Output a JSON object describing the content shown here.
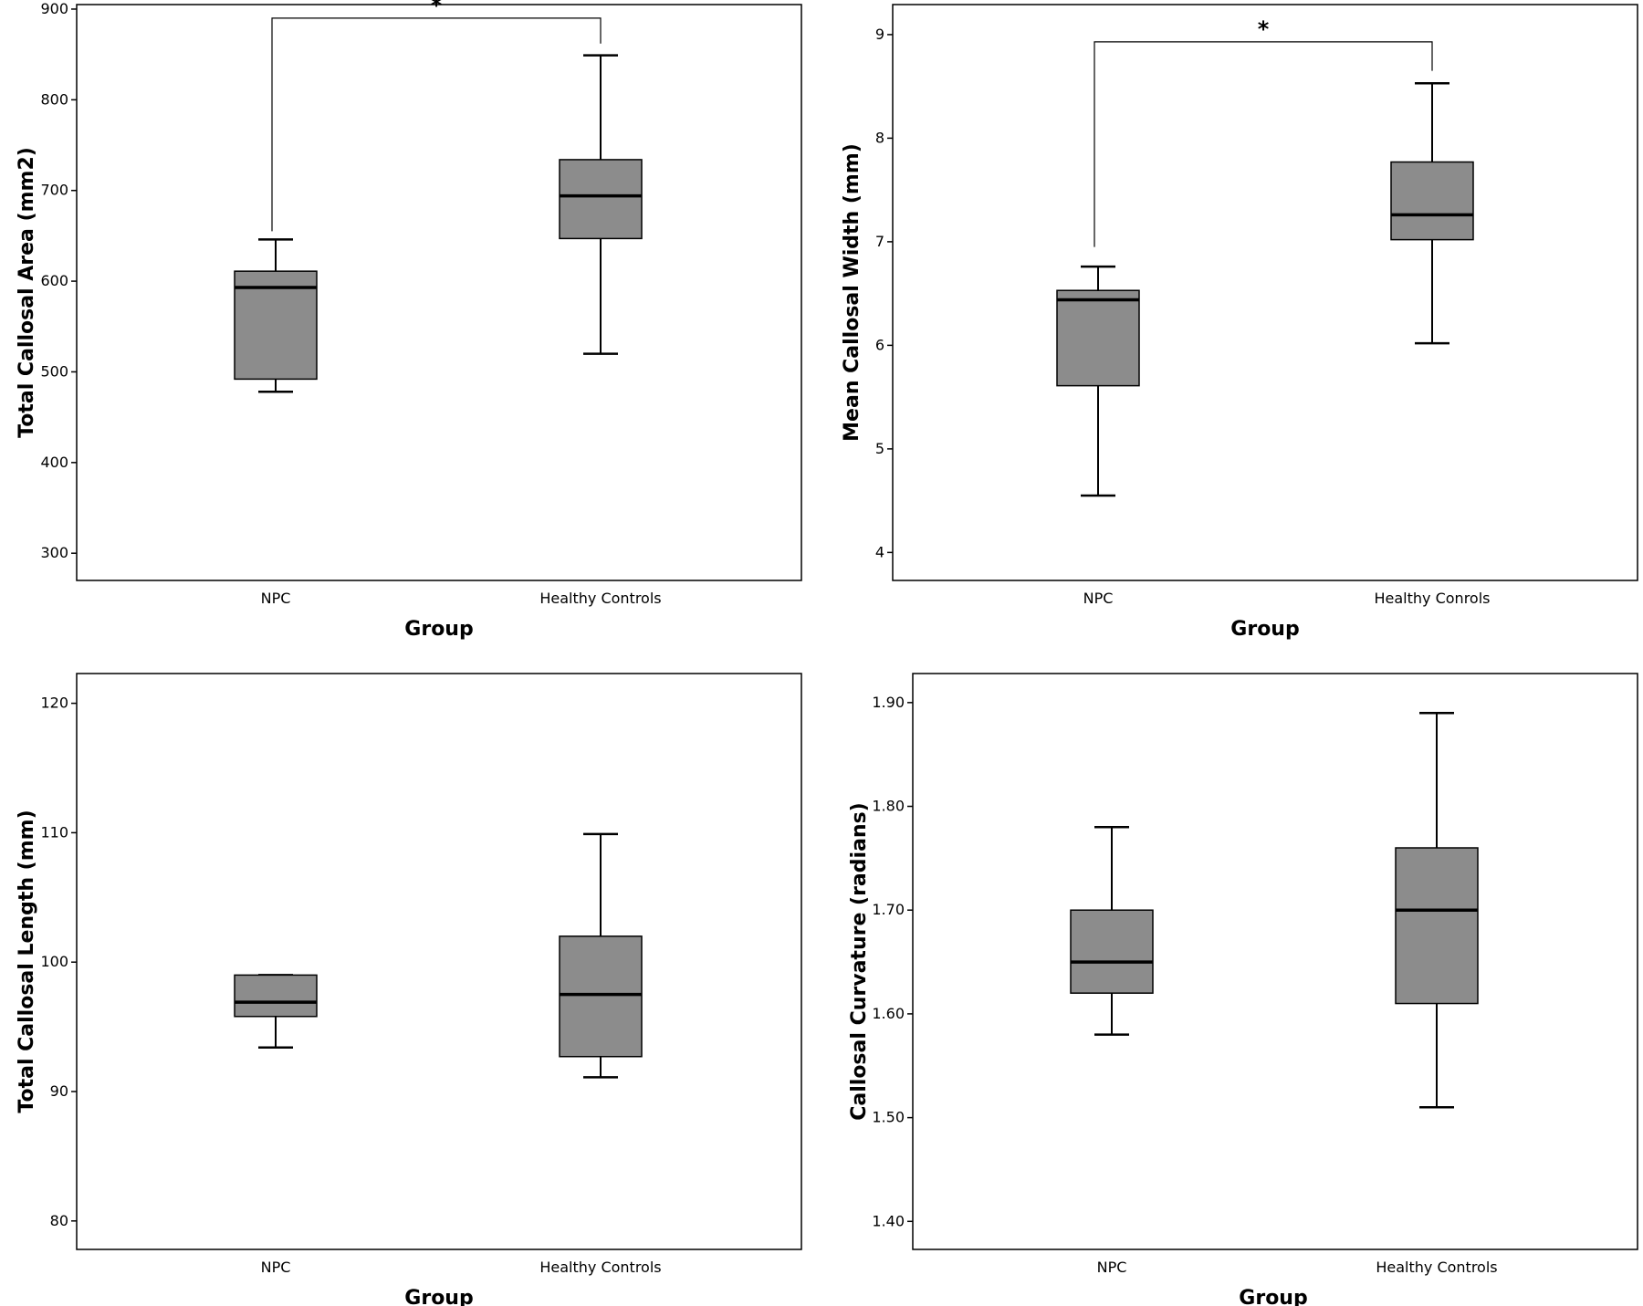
{
  "box_fill": "#8c8c8c",
  "line_color": "#000000",
  "chart_data": [
    {
      "type": "box",
      "id": "area",
      "xlabel": "Group",
      "ylabel": "Total Callosal Area (mm2)",
      "categories": [
        "NPC",
        "Healthy Controls"
      ],
      "ylim": [
        270,
        905
      ],
      "yticks": [
        300,
        400,
        500,
        600,
        700,
        800,
        900
      ],
      "ytick_labels": [
        "300",
        "400",
        "500",
        "600",
        "700",
        "800",
        "900"
      ],
      "boxes": [
        {
          "min": 478,
          "q1": 492,
          "median": 593,
          "q3": 611,
          "max": 646
        },
        {
          "min": 520,
          "q1": 647,
          "median": 694,
          "q3": 734,
          "max": 849
        }
      ],
      "significance": {
        "label": "*",
        "between": [
          0,
          1
        ],
        "level": 890,
        "left_end": 655,
        "right_end": 862
      }
    },
    {
      "type": "box",
      "id": "width",
      "xlabel": "Group",
      "ylabel": "Mean Callosal Width (mm)",
      "categories": [
        "NPC",
        "Healthy Conrols"
      ],
      "ylim": [
        3.73,
        9.29
      ],
      "yticks": [
        4,
        5,
        6,
        7,
        8,
        9
      ],
      "ytick_labels": [
        "4",
        "5",
        "6",
        "7",
        "8",
        "9"
      ],
      "boxes": [
        {
          "min": 4.55,
          "q1": 5.61,
          "median": 6.44,
          "q3": 6.53,
          "max": 6.76
        },
        {
          "min": 6.02,
          "q1": 7.02,
          "median": 7.26,
          "q3": 7.77,
          "max": 8.53
        }
      ],
      "significance": {
        "label": "*",
        "between": [
          0,
          1
        ],
        "level": 8.93,
        "left_end": 6.95,
        "right_end": 8.65
      }
    },
    {
      "type": "box",
      "id": "length",
      "xlabel": "Group",
      "ylabel": "Total Callosal Length (mm)",
      "categories": [
        "NPC",
        "Healthy Controls"
      ],
      "ylim": [
        77.8,
        122.3
      ],
      "yticks": [
        80,
        90,
        100,
        110,
        120
      ],
      "ytick_labels": [
        "80",
        "90",
        "100",
        "110",
        "120"
      ],
      "boxes": [
        {
          "min": 93.4,
          "q1": 95.8,
          "median": 96.9,
          "q3": 99.0,
          "max": 99.0
        },
        {
          "min": 91.1,
          "q1": 92.7,
          "median": 97.5,
          "q3": 102.0,
          "max": 109.9
        }
      ]
    },
    {
      "type": "box",
      "id": "curvature",
      "xlabel": "Group",
      "ylabel": "Callosal Curvature (radians)",
      "categories": [
        "NPC",
        "Healthy Controls"
      ],
      "ylim": [
        1.373,
        1.928
      ],
      "yticks": [
        1.4,
        1.5,
        1.6,
        1.7,
        1.8,
        1.9
      ],
      "ytick_labels": [
        "1.40",
        "1.50",
        "1.60",
        "1.70",
        "1.80",
        "1.90"
      ],
      "boxes": [
        {
          "min": 1.58,
          "q1": 1.62,
          "median": 1.65,
          "q3": 1.7,
          "max": 1.78
        },
        {
          "min": 1.51,
          "q1": 1.61,
          "median": 1.7,
          "q3": 1.76,
          "max": 1.89
        }
      ]
    }
  ]
}
